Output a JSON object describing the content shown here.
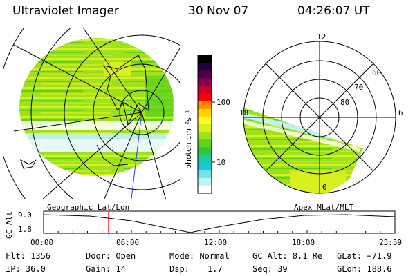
{
  "header": {
    "title": "Ultraviolet Imager",
    "date": "30 Nov 07",
    "time": "04:26:07 UT"
  },
  "colorbar": {
    "label": "photon cm⁻²s⁻¹",
    "ticks": [
      "100",
      "10"
    ],
    "colors": [
      "#000000",
      "#23003a",
      "#4a0050",
      "#8a004c",
      "#c8002e",
      "#ff0000",
      "#ff8a00",
      "#ffd200",
      "#fffb20",
      "#d7f020",
      "#9fe21c",
      "#5fd21c",
      "#2bc846",
      "#1ec8a8",
      "#18c8dc",
      "#6ee6e6",
      "#c0f2f2",
      "#ffffff"
    ]
  },
  "polar": {
    "mlt_labels": [
      "12",
      "18",
      "6",
      "0"
    ],
    "lat_labels": [
      "60",
      "70",
      "80"
    ]
  },
  "timeline": {
    "left_label": "Geographic Lat/Lon",
    "right_label": "Apex MLat/MLT",
    "ylabel": "GC Alt",
    "yticks": [
      "9.0",
      "1.8"
    ],
    "xticks": [
      "00:00",
      "06:00",
      "12:00",
      "18:00",
      "23:59"
    ],
    "marker_time": "04:26"
  },
  "info": {
    "flt": "Flt: 1356",
    "ip": "IP: 36.0",
    "door": "Door: Open",
    "gain": "Gain: 14",
    "mode": "Mode: Normal",
    "dsp_label": "Dsp:",
    "dsp_value": "1.7",
    "gc_alt": "GC Alt: 8.1 Re",
    "seq": "Seq: 39",
    "glat": "GLat: −71.9",
    "glon": "GLon: 188.6"
  }
}
